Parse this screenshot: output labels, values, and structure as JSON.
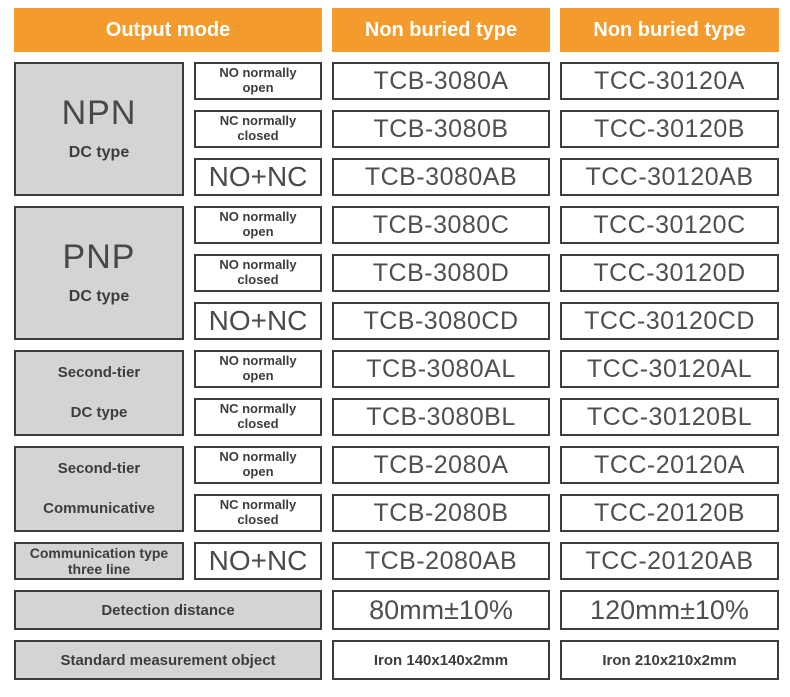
{
  "header": {
    "output_mode": "Output mode",
    "non_buried_left": "Non buried type",
    "non_buried_right": "Non buried type"
  },
  "colors": {
    "accent_orange": "#F39B2D",
    "cell_gray": "#D4D4D4",
    "border_dark": "#3C3C3C",
    "text_dark": "#4B4B4B"
  },
  "groups": [
    {
      "label_main": "NPN",
      "label_sub": "DC type",
      "rows": [
        {
          "mode": "NO normally open",
          "tcb": "TCB-3080A",
          "tcc": "TCC-30120A"
        },
        {
          "mode": "NC normally closed",
          "tcb": "TCB-3080B",
          "tcc": "TCC-30120B"
        },
        {
          "mode": "NO+NC",
          "tcb": "TCB-3080AB",
          "tcc": "TCC-30120AB"
        }
      ]
    },
    {
      "label_main": "PNP",
      "label_sub": "DC type",
      "rows": [
        {
          "mode": "NO normally open",
          "tcb": "TCB-3080C",
          "tcc": "TCC-30120C"
        },
        {
          "mode": "NO normally closed",
          "tcb": "TCB-3080D",
          "tcc": "TCC-30120D"
        },
        {
          "mode": "NO+NC",
          "tcb": "TCB-3080CD",
          "tcc": "TCC-30120CD"
        }
      ]
    },
    {
      "label_main": "Second-tier",
      "label_sub": "DC type",
      "rows": [
        {
          "mode": "NO normally open",
          "tcb": "TCB-3080AL",
          "tcc": "TCC-30120AL"
        },
        {
          "mode": "NC normally closed",
          "tcb": "TCB-3080BL",
          "tcc": "TCC-30120BL"
        }
      ]
    },
    {
      "label_main": "Second-tier",
      "label_sub": "Communicative",
      "rows": [
        {
          "mode": "NO normally open",
          "tcb": "TCB-2080A",
          "tcc": "TCC-20120A"
        },
        {
          "mode": "NC normally closed",
          "tcb": "TCB-2080B",
          "tcc": "TCC-20120B"
        }
      ]
    },
    {
      "label_main": "Communication type three line",
      "rows": [
        {
          "mode": "NO+NC",
          "tcb": "TCB-2080AB",
          "tcc": "TCC-20120AB"
        }
      ]
    }
  ],
  "footer_rows": [
    {
      "label": "Detection distance",
      "left": "80mm±10%",
      "right": "120mm±10%"
    },
    {
      "label": "Standard measurement object",
      "left": "Iron 140x140x2mm",
      "right": "Iron 210x210x2mm"
    }
  ]
}
